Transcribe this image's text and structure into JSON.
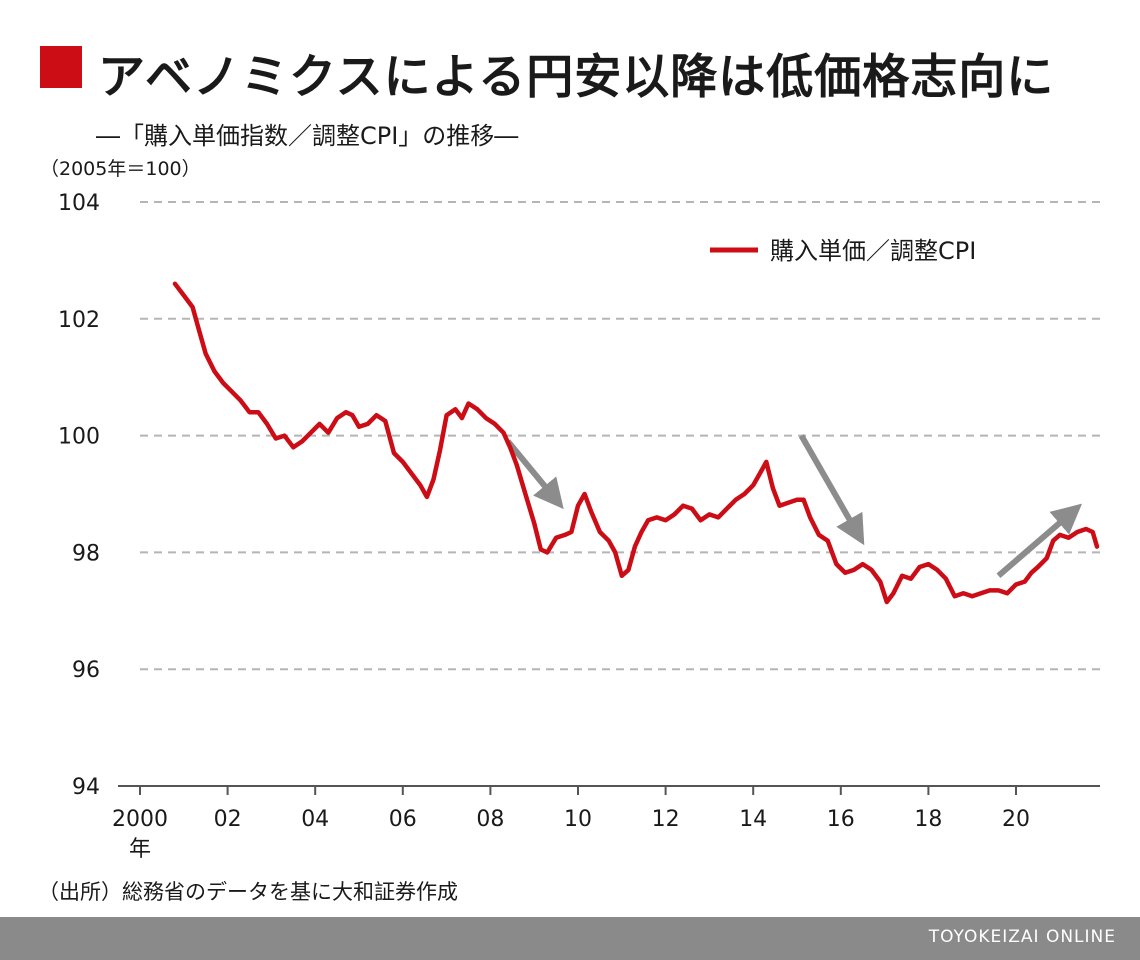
{
  "colors": {
    "accent": "#cc0d16",
    "arrow": "#8c8c8c",
    "footer_bg": "#8a8a8a",
    "grid": "#b5b5b5",
    "axis": "#555555"
  },
  "header": {
    "title": "アベノミクスによる円安以降は低価格志向に",
    "subtitle": "―「購入単価指数／調整CPI」の推移―"
  },
  "chart_data": {
    "type": "line",
    "title": "アベノミクスによる円安以降は低価格志向に",
    "subtitle": "―「購入単価指数／調整CPI」の推移―",
    "unit_note": "（2005年＝100）",
    "ylim": [
      94,
      104
    ],
    "yticks": [
      94,
      96,
      98,
      100,
      102,
      104
    ],
    "xlim": [
      2000,
      2021.9
    ],
    "xticks": [
      {
        "value": 2000,
        "label": "2000"
      },
      {
        "value": 2002,
        "label": "02"
      },
      {
        "value": 2004,
        "label": "04"
      },
      {
        "value": 2006,
        "label": "06"
      },
      {
        "value": 2008,
        "label": "08"
      },
      {
        "value": 2010,
        "label": "10"
      },
      {
        "value": 2012,
        "label": "12"
      },
      {
        "value": 2014,
        "label": "14"
      },
      {
        "value": 2016,
        "label": "16"
      },
      {
        "value": 2018,
        "label": "18"
      },
      {
        "value": 2020,
        "label": "20"
      }
    ],
    "x_unit_label": "年",
    "grid": "dashed-horizontal",
    "legend_position": "top-right",
    "series": [
      {
        "name": "購入単価／調整CPI",
        "points": [
          [
            2000.8,
            102.6
          ],
          [
            2001.0,
            102.4
          ],
          [
            2001.2,
            102.2
          ],
          [
            2001.35,
            101.8
          ],
          [
            2001.5,
            101.4
          ],
          [
            2001.7,
            101.1
          ],
          [
            2001.9,
            100.9
          ],
          [
            2002.1,
            100.75
          ],
          [
            2002.3,
            100.6
          ],
          [
            2002.5,
            100.4
          ],
          [
            2002.7,
            100.4
          ],
          [
            2002.9,
            100.2
          ],
          [
            2003.1,
            99.95
          ],
          [
            2003.3,
            100.0
          ],
          [
            2003.5,
            99.8
          ],
          [
            2003.7,
            99.9
          ],
          [
            2003.9,
            100.05
          ],
          [
            2004.1,
            100.2
          ],
          [
            2004.3,
            100.05
          ],
          [
            2004.5,
            100.3
          ],
          [
            2004.7,
            100.4
          ],
          [
            2004.85,
            100.35
          ],
          [
            2005.0,
            100.15
          ],
          [
            2005.2,
            100.2
          ],
          [
            2005.4,
            100.35
          ],
          [
            2005.6,
            100.25
          ],
          [
            2005.8,
            99.7
          ],
          [
            2006.0,
            99.55
          ],
          [
            2006.2,
            99.35
          ],
          [
            2006.4,
            99.15
          ],
          [
            2006.55,
            98.95
          ],
          [
            2006.7,
            99.25
          ],
          [
            2006.85,
            99.75
          ],
          [
            2007.0,
            100.35
          ],
          [
            2007.2,
            100.45
          ],
          [
            2007.35,
            100.3
          ],
          [
            2007.5,
            100.55
          ],
          [
            2007.7,
            100.45
          ],
          [
            2007.9,
            100.3
          ],
          [
            2008.1,
            100.2
          ],
          [
            2008.3,
            100.05
          ],
          [
            2008.45,
            99.8
          ],
          [
            2008.6,
            99.5
          ],
          [
            2008.8,
            99.0
          ],
          [
            2009.0,
            98.5
          ],
          [
            2009.15,
            98.05
          ],
          [
            2009.3,
            98.0
          ],
          [
            2009.5,
            98.25
          ],
          [
            2009.7,
            98.3
          ],
          [
            2009.85,
            98.35
          ],
          [
            2010.0,
            98.8
          ],
          [
            2010.15,
            99.0
          ],
          [
            2010.3,
            98.7
          ],
          [
            2010.5,
            98.35
          ],
          [
            2010.7,
            98.2
          ],
          [
            2010.85,
            98.0
          ],
          [
            2011.0,
            97.6
          ],
          [
            2011.15,
            97.7
          ],
          [
            2011.3,
            98.1
          ],
          [
            2011.45,
            98.35
          ],
          [
            2011.6,
            98.55
          ],
          [
            2011.8,
            98.6
          ],
          [
            2012.0,
            98.55
          ],
          [
            2012.2,
            98.65
          ],
          [
            2012.4,
            98.8
          ],
          [
            2012.6,
            98.75
          ],
          [
            2012.8,
            98.55
          ],
          [
            2013.0,
            98.65
          ],
          [
            2013.2,
            98.6
          ],
          [
            2013.4,
            98.75
          ],
          [
            2013.6,
            98.9
          ],
          [
            2013.8,
            99.0
          ],
          [
            2014.0,
            99.15
          ],
          [
            2014.15,
            99.35
          ],
          [
            2014.3,
            99.55
          ],
          [
            2014.45,
            99.1
          ],
          [
            2014.6,
            98.8
          ],
          [
            2014.8,
            98.85
          ],
          [
            2015.0,
            98.9
          ],
          [
            2015.15,
            98.9
          ],
          [
            2015.3,
            98.6
          ],
          [
            2015.5,
            98.3
          ],
          [
            2015.7,
            98.2
          ],
          [
            2015.9,
            97.8
          ],
          [
            2016.1,
            97.65
          ],
          [
            2016.3,
            97.7
          ],
          [
            2016.5,
            97.8
          ],
          [
            2016.7,
            97.7
          ],
          [
            2016.9,
            97.5
          ],
          [
            2017.05,
            97.15
          ],
          [
            2017.2,
            97.3
          ],
          [
            2017.4,
            97.6
          ],
          [
            2017.6,
            97.55
          ],
          [
            2017.8,
            97.75
          ],
          [
            2018.0,
            97.8
          ],
          [
            2018.2,
            97.7
          ],
          [
            2018.4,
            97.55
          ],
          [
            2018.6,
            97.25
          ],
          [
            2018.8,
            97.3
          ],
          [
            2019.0,
            97.25
          ],
          [
            2019.2,
            97.3
          ],
          [
            2019.4,
            97.35
          ],
          [
            2019.6,
            97.35
          ],
          [
            2019.8,
            97.3
          ],
          [
            2020.0,
            97.45
          ],
          [
            2020.2,
            97.5
          ],
          [
            2020.35,
            97.65
          ],
          [
            2020.5,
            97.75
          ],
          [
            2020.7,
            97.9
          ],
          [
            2020.85,
            98.2
          ],
          [
            2021.0,
            98.3
          ],
          [
            2021.2,
            98.25
          ],
          [
            2021.4,
            98.35
          ],
          [
            2021.6,
            98.4
          ],
          [
            2021.75,
            98.35
          ],
          [
            2021.85,
            98.1
          ]
        ]
      }
    ],
    "arrows": [
      {
        "from": [
          2008.4,
          99.9
        ],
        "to": [
          2009.5,
          98.9
        ]
      },
      {
        "from": [
          2015.1,
          100.0
        ],
        "to": [
          2016.4,
          98.3
        ]
      },
      {
        "from": [
          2019.6,
          97.6
        ],
        "to": [
          2021.3,
          98.7
        ]
      }
    ]
  },
  "footer": {
    "source_note": "（出所）総務省のデータを基に大和証券作成",
    "brand": "TOYOKEIZAI ONLINE"
  }
}
